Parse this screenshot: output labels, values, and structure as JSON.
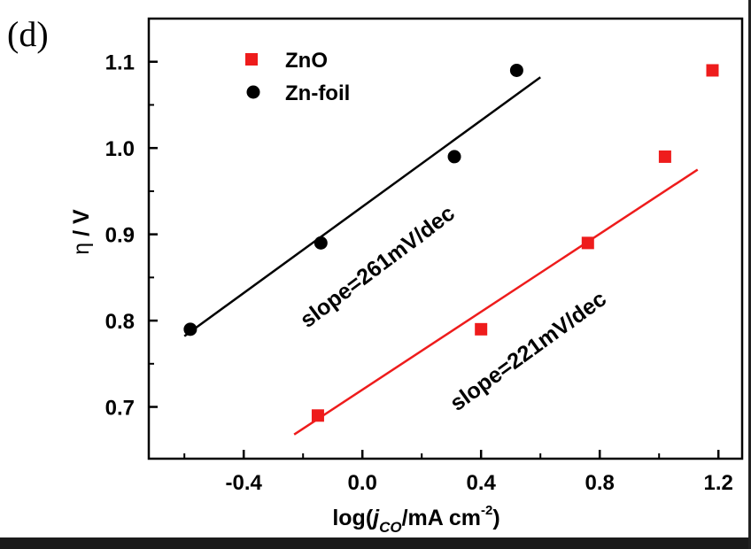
{
  "chart_data": {
    "type": "scatter",
    "panel_label": "(d)",
    "xlabel": {
      "prefix": "log(",
      "italic": "j",
      "sub": "CO",
      "suffix": "/mA cm",
      "sup": "-2",
      "close": ")"
    },
    "ylabel": {
      "symbol": "η",
      "unit": " / V"
    },
    "xlim": [
      -0.72,
      1.28
    ],
    "ylim": [
      0.64,
      1.15
    ],
    "x_ticks": [
      -0.4,
      0.0,
      0.4,
      0.8,
      1.2
    ],
    "x_tick_labels": [
      "-0.4",
      "0.0",
      "0.4",
      "0.8",
      "1.2"
    ],
    "y_ticks": [
      0.7,
      0.8,
      0.9,
      1.0,
      1.1
    ],
    "y_tick_labels": [
      "0.7",
      "0.8",
      "0.9",
      "1.0",
      "1.1"
    ],
    "legend_position": "top-left",
    "series": [
      {
        "name": "ZnO",
        "marker": "square",
        "color": "#ee1c1c",
        "points": [
          [
            -0.15,
            0.69
          ],
          [
            0.4,
            0.79
          ],
          [
            0.76,
            0.89
          ],
          [
            1.02,
            0.99
          ],
          [
            1.18,
            1.09
          ]
        ],
        "fit": [
          [
            -0.23,
            0.668
          ],
          [
            1.13,
            0.975
          ]
        ],
        "annotation": "slope=221mV/dec"
      },
      {
        "name": "Zn-foil",
        "marker": "circle",
        "color": "#000000",
        "points": [
          [
            -0.58,
            0.79
          ],
          [
            -0.14,
            0.89
          ],
          [
            0.31,
            0.99
          ],
          [
            0.52,
            1.09
          ]
        ],
        "fit": [
          [
            -0.6,
            0.782
          ],
          [
            0.6,
            1.082
          ]
        ],
        "annotation": "slope=261mV/dec"
      }
    ]
  }
}
